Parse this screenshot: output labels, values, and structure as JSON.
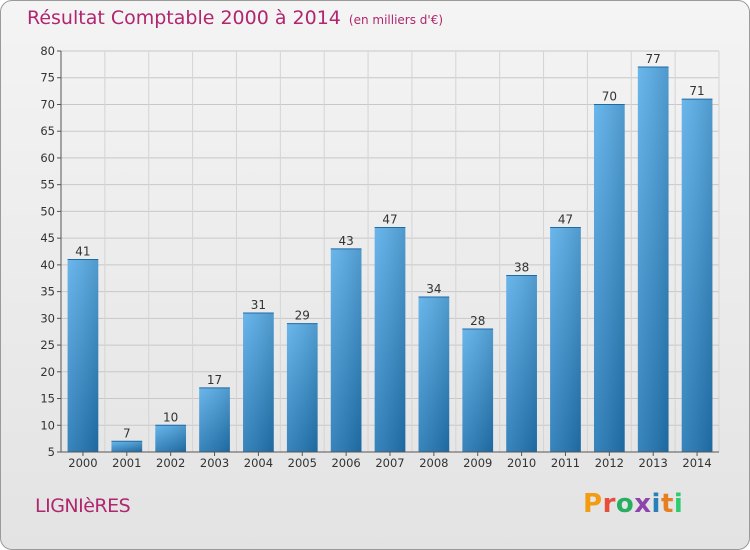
{
  "chart_data": {
    "type": "bar",
    "title": "Résultat Comptable 2000 à 2014",
    "unit": "(en milliers d'€)",
    "categories": [
      "2000",
      "2001",
      "2002",
      "2003",
      "2004",
      "2005",
      "2006",
      "2007",
      "2008",
      "2009",
      "2010",
      "2011",
      "2012",
      "2013",
      "2014"
    ],
    "values": [
      41,
      7,
      10,
      17,
      31,
      29,
      43,
      47,
      34,
      28,
      38,
      47,
      70,
      77,
      71
    ],
    "ylim": [
      5,
      80
    ],
    "yticks": [
      5,
      10,
      15,
      20,
      25,
      30,
      35,
      40,
      45,
      50,
      55,
      60,
      65,
      70,
      75,
      80
    ],
    "grid": true,
    "bar_color": "#3a92d3"
  },
  "footer": {
    "commune": "LIGNIèRES",
    "logo": "Proxiti"
  },
  "colors": {
    "title": "#b0266f",
    "logo_letters": [
      "#f39c12",
      "#e74c3c",
      "#27ae60",
      "#8e44ad",
      "#2980b9",
      "#e67e22",
      "#2ecc71"
    ]
  }
}
